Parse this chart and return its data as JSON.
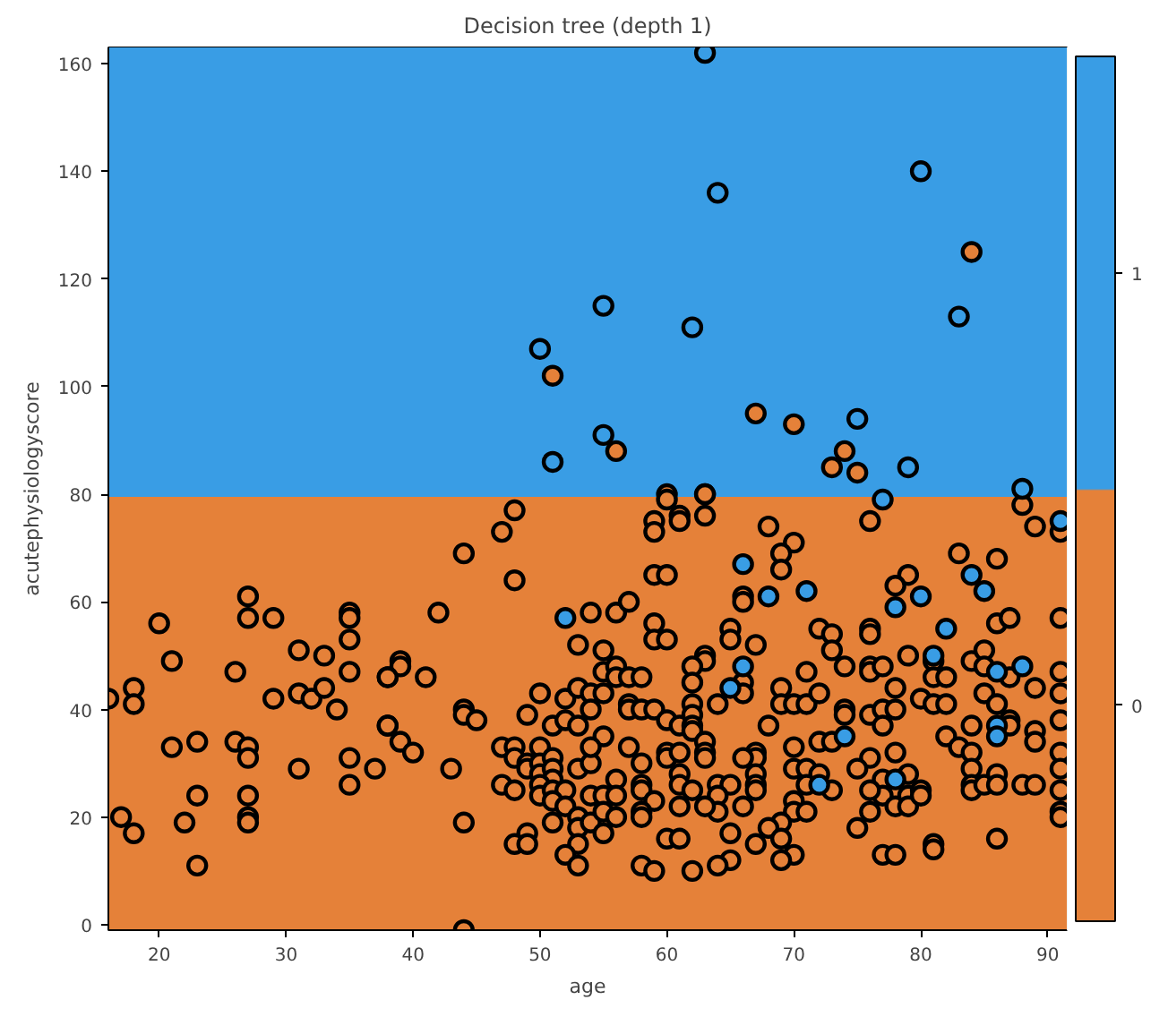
{
  "chart_data": {
    "type": "scatter",
    "title": "Decision tree (depth 1)",
    "xlabel": "age",
    "ylabel": "acutephysiologyscore",
    "xlim": [
      16,
      91.5
    ],
    "ylim": [
      -1,
      163
    ],
    "xticks": [
      20,
      30,
      40,
      50,
      60,
      70,
      80,
      90
    ],
    "yticks": [
      0,
      20,
      40,
      60,
      80,
      100,
      120,
      140,
      160
    ],
    "marker": "circle",
    "legend": "right",
    "bands": [
      {
        "axis": "y",
        "from": -1,
        "to": 79.5,
        "color": "#e58139"
      },
      {
        "axis": "y",
        "from": 79.5,
        "to": 163,
        "color": "#399de5"
      }
    ],
    "series": [
      {
        "name": "0",
        "color": "#e58139",
        "x": [
          84,
          51,
          67,
          70,
          56,
          74,
          73,
          75,
          60,
          63,
          88,
          27,
          27,
          29,
          20,
          35,
          35,
          35,
          31,
          33,
          21,
          26,
          35,
          38,
          16,
          18,
          18,
          29,
          31,
          32,
          33,
          34,
          38,
          21,
          23,
          26,
          27,
          27,
          31,
          35,
          37,
          35,
          23,
          27,
          17,
          18,
          22,
          27,
          27,
          23,
          48,
          47,
          44,
          48,
          42,
          54,
          56,
          53,
          55,
          55,
          56,
          56,
          39,
          39,
          38,
          41,
          50,
          52,
          53,
          54,
          55,
          54,
          44,
          44,
          45,
          49,
          51,
          52,
          53,
          38,
          39,
          40,
          55,
          47,
          48,
          50,
          48,
          49,
          49,
          50,
          51,
          50,
          51,
          51,
          50,
          50,
          51,
          52,
          53,
          54,
          54,
          43,
          47,
          48,
          51,
          52,
          54,
          55,
          56,
          56,
          51,
          53,
          53,
          54,
          55,
          55,
          56,
          44,
          49,
          48,
          49,
          53,
          52,
          53,
          44,
          60,
          63,
          63,
          59,
          59,
          61,
          61,
          68,
          70,
          69,
          69,
          66,
          66,
          59,
          60,
          57,
          59,
          59,
          60,
          65,
          65,
          67,
          63,
          63,
          62,
          62,
          66,
          66,
          64,
          57,
          58,
          57,
          57,
          58,
          59,
          60,
          61,
          62,
          62,
          62,
          62,
          63,
          63,
          63,
          60,
          60,
          61,
          57,
          58,
          68,
          69,
          69,
          70,
          71,
          72,
          71,
          72,
          73,
          73,
          74,
          74,
          72,
          73,
          70,
          67,
          67,
          66,
          70,
          71,
          72,
          71,
          73,
          67,
          67,
          67,
          61,
          61,
          58,
          58,
          59,
          62,
          64,
          65,
          64,
          64,
          63,
          61,
          66,
          58,
          58,
          70,
          70,
          71,
          69,
          68,
          65,
          67,
          69,
          60,
          61,
          70,
          69,
          65,
          64,
          62,
          58,
          59,
          76,
          89,
          91,
          83,
          86,
          79,
          78,
          76,
          76,
          86,
          87,
          91,
          76,
          76,
          77,
          79,
          81,
          81,
          82,
          84,
          85,
          85,
          87,
          89,
          91,
          78,
          80,
          81,
          82,
          85,
          86,
          91,
          74,
          76,
          77,
          78,
          77,
          82,
          83,
          84,
          87,
          87,
          89,
          89,
          91,
          84,
          78,
          76,
          75,
          77,
          79,
          77,
          76,
          78,
          79,
          79,
          80,
          80,
          84,
          84,
          84,
          85,
          86,
          86,
          88,
          89,
          91,
          91,
          91,
          91,
          91,
          76,
          75,
          77,
          78,
          81,
          81,
          86
        ],
        "values": [
          125,
          102,
          95,
          93,
          88,
          88,
          85,
          84,
          80,
          80,
          78,
          61,
          57,
          57,
          56,
          58,
          57,
          53,
          51,
          50,
          49,
          47,
          47,
          46,
          42,
          44,
          41,
          42,
          43,
          42,
          44,
          40,
          37,
          33,
          34,
          34,
          33,
          31,
          29,
          31,
          29,
          26,
          24,
          24,
          20,
          17,
          19,
          20,
          19,
          11,
          77,
          73,
          69,
          64,
          58,
          58,
          58,
          52,
          51,
          47,
          48,
          46,
          49,
          48,
          46,
          46,
          43,
          42,
          44,
          43,
          43,
          40,
          40,
          39,
          38,
          39,
          37,
          38,
          37,
          37,
          34,
          32,
          35,
          33,
          33,
          33,
          31,
          30,
          29,
          30,
          31,
          28,
          29,
          27,
          26,
          24,
          25,
          25,
          29,
          30,
          33,
          29,
          26,
          25,
          23,
          22,
          24,
          24,
          27,
          24,
          19,
          20,
          18,
          19,
          21,
          17,
          20,
          19,
          17,
          15,
          15,
          15,
          13,
          11,
          -1,
          79,
          80,
          76,
          75,
          73,
          76,
          75,
          74,
          71,
          69,
          66,
          61,
          60,
          65,
          65,
          60,
          56,
          53,
          53,
          55,
          53,
          52,
          50,
          49,
          48,
          45,
          45,
          43,
          41,
          46,
          46,
          41,
          40,
          40,
          40,
          38,
          37,
          41,
          39,
          37,
          36,
          34,
          32,
          31,
          32,
          31,
          32,
          33,
          30,
          37,
          44,
          41,
          41,
          41,
          43,
          47,
          55,
          54,
          51,
          48,
          40,
          34,
          34,
          33,
          32,
          31,
          31,
          29,
          29,
          28,
          26,
          25,
          28,
          26,
          25,
          28,
          26,
          26,
          25,
          23,
          25,
          26,
          26,
          24,
          21,
          22,
          22,
          22,
          21,
          20,
          23,
          21,
          21,
          19,
          18,
          17,
          15,
          16,
          16,
          16,
          13,
          12,
          12,
          11,
          10,
          11,
          10,
          75,
          74,
          73,
          69,
          68,
          65,
          63,
          55,
          54,
          56,
          57,
          57,
          48,
          47,
          48,
          50,
          49,
          46,
          46,
          49,
          51,
          48,
          46,
          44,
          47,
          44,
          42,
          41,
          41,
          43,
          41,
          43,
          39,
          39,
          40,
          40,
          37,
          35,
          33,
          37,
          38,
          37,
          36,
          34,
          38,
          32,
          32,
          31,
          29,
          27,
          28,
          24,
          25,
          22,
          24,
          22,
          25,
          24,
          29,
          26,
          25,
          26,
          28,
          26,
          26,
          26,
          32,
          29,
          25,
          21,
          20,
          21,
          18,
          13,
          13,
          15,
          14,
          16
        ]
      },
      {
        "name": "1",
        "color": "#399de5",
        "x": [
          63,
          80,
          64,
          55,
          83,
          62,
          50,
          75,
          55,
          79,
          51,
          77,
          88,
          52,
          66,
          68,
          71,
          65,
          66,
          91,
          84,
          85,
          80,
          78,
          82,
          81,
          86,
          88,
          74,
          86,
          86,
          72,
          78
        ],
        "values": [
          162,
          140,
          136,
          115,
          113,
          111,
          107,
          94,
          91,
          85,
          86,
          79,
          81,
          57,
          67,
          61,
          62,
          44,
          48,
          75,
          65,
          62,
          61,
          59,
          55,
          50,
          47,
          48,
          35,
          37,
          35,
          26,
          27
        ]
      }
    ]
  }
}
